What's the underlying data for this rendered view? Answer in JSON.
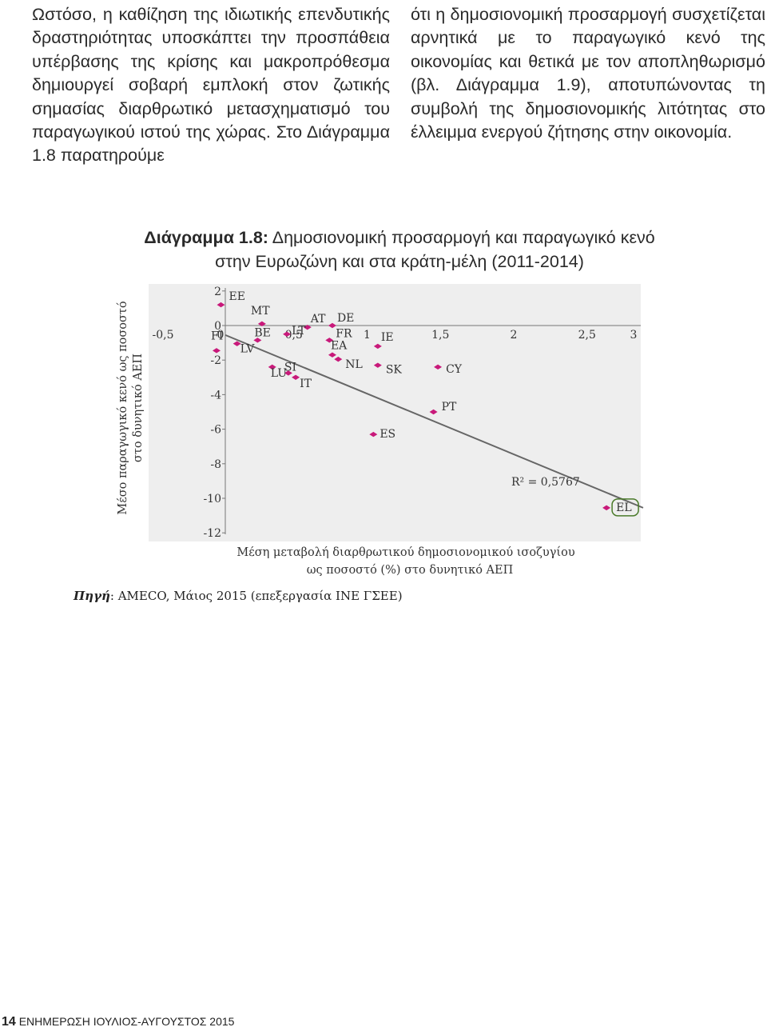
{
  "text": {
    "left_column": "Ωστόσο, η καθίζηση της ιδιωτικής επενδυτικής δραστηριότητας υποσκάπτει την προσπάθεια υπέρβασης της κρίσης και μακροπρόθεσμα δημιουργεί σοβαρή εμπλοκή στον ζωτικής σημασίας διαρθρωτικό μετασχηματισμό του παραγωγικού ιστού της χώρας. Στο Διάγραμμα 1.8 παρατηρούμε",
    "right_column": "ότι η δημοσιονομική προσαρμογή συσχετίζεται αρνητικά με το παραγωγικό κενό της οικονομίας και θετικά με τον αποπληθωρισμό (βλ. Διάγραμμα 1.9), αποτυπώνοντας τη συμβολή της δημοσιονομικής λιτότητας στο έλλειμμα ενεργού ζήτησης στην οικονομία."
  },
  "figure": {
    "label": "Διάγραμμα 1.8:",
    "title_line1": " Δημοσιονομική προσαρμογή και παραγωγικό κενό",
    "title_line2": "στην Ευρωζώνη και στα κράτη-μέλη (2011-2014)"
  },
  "chart_data": {
    "type": "scatter",
    "x_ticks": [
      "-0,5",
      "0",
      "0,5",
      "1",
      "1,5",
      "2",
      "2,5",
      "3"
    ],
    "y_ticks": [
      "2",
      "0",
      "-2",
      "-4",
      "-6",
      "-8",
      "-10",
      "-12"
    ],
    "xlim": [
      -0.5,
      3
    ],
    "ylim": [
      -12,
      2
    ],
    "xlabel_line1": "Μέση μεταβολή διαρθρωτικού δημοσιονομικού ισοζυγίου",
    "xlabel_line2": "ως ποσοστό (%) στο δυνητικό ΑΕΠ",
    "ylabel_line1": "Μέσο παραγωγικό κενό ως ποσοστό",
    "ylabel_line2": "στο δυνητικό ΑΕΠ",
    "r2_label": "R² = 0,5767",
    "point_color": "#c8197a",
    "points": [
      {
        "label": "EE",
        "x": -0.03,
        "y": 1.2
      },
      {
        "label": "MT",
        "x": 0.25,
        "y": 0.1
      },
      {
        "label": "AT",
        "x": 0.56,
        "y": -0.1
      },
      {
        "label": "DE",
        "x": 0.73,
        "y": 0.0
      },
      {
        "label": "LT",
        "x": 0.42,
        "y": -0.5
      },
      {
        "label": "FR",
        "x": 0.71,
        "y": -0.85
      },
      {
        "label": "BE",
        "x": 0.22,
        "y": -0.85
      },
      {
        "label": "FI",
        "x": -0.06,
        "y": -1.45
      },
      {
        "label": "LV",
        "x": 0.08,
        "y": -1.05
      },
      {
        "label": "EA",
        "x": 0.73,
        "y": -1.7
      },
      {
        "label": "NL",
        "x": 0.77,
        "y": -1.95
      },
      {
        "label": "IE",
        "x": 1.04,
        "y": -1.2
      },
      {
        "label": "SK",
        "x": 1.04,
        "y": -2.3
      },
      {
        "label": "LU",
        "x": 0.32,
        "y": -2.4
      },
      {
        "label": "SI",
        "x": 0.43,
        "y": -2.75
      },
      {
        "label": "IT",
        "x": 0.48,
        "y": -3.0
      },
      {
        "label": "CY",
        "x": 1.45,
        "y": -2.4
      },
      {
        "label": "PT",
        "x": 1.42,
        "y": -5.0
      },
      {
        "label": "ES",
        "x": 1.01,
        "y": -6.3
      },
      {
        "label": "EL",
        "x": 2.6,
        "y": -10.55
      }
    ],
    "trendline": {
      "x": [
        0.0,
        2.85
      ],
      "y": [
        -0.55,
        -10.55
      ]
    },
    "highlight": "EL"
  },
  "source": {
    "label": "Πηγή",
    "text": ": AMECO, Μάιος 2015 (επεξεργασία ΙΝΕ ΓΣΕΕ)"
  },
  "footer": {
    "page_number": "14",
    "publication": "ΕΝΗΜΕΡΩΣΗ ΙΟΥΛΙΟΣ-ΑΥΓΟΥΣΤΟΣ 2015"
  }
}
